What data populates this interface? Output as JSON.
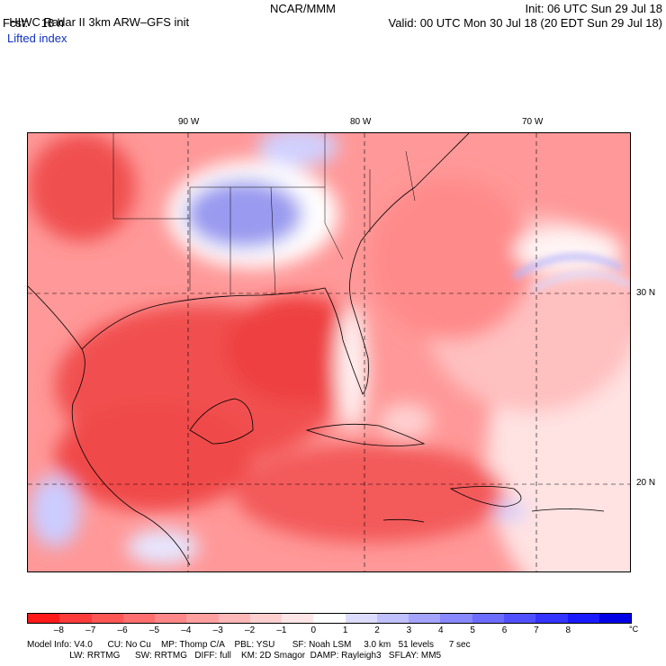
{
  "header": {
    "title": "HIWC Radar II 3km ARW–GFS init",
    "org": "NCAR/MMM",
    "init": "Init: 06 UTC Sun 29 Jul 18",
    "fcst": "Fcst:    18 h",
    "valid": "Valid: 00 UTC Mon 30 Jul 18 (20 EDT Sun 29 Jul 18)",
    "field": "Lifted index"
  },
  "map": {
    "lon_labels": [
      "90 W",
      "80 W",
      "70 W"
    ],
    "lat_labels": [
      "30 N",
      "20 N"
    ],
    "field_name": "Lifted index",
    "pattern": "Unstable (negative, red) air over the Gulf of Mexico, Caribbean, Florida and the western Atlantic; stable (positive, blue) air over the southeastern US interior and patches over Mexico and the Bahamas region"
  },
  "colorbar": {
    "colors": [
      "#ff1a1a",
      "#ff3b3b",
      "#ff5656",
      "#ff6f6f",
      "#ff8787",
      "#ff9f9f",
      "#ffb7b7",
      "#ffcfcf",
      "#ffe6e6",
      "#ffffff",
      "#dcdcff",
      "#c0c0ff",
      "#a4a4ff",
      "#8888ff",
      "#6c6cff",
      "#5050ff",
      "#3434ff",
      "#1a1aff",
      "#0000e6"
    ],
    "ticks": [
      "–8",
      "–7",
      "–6",
      "–5",
      "–4",
      "–3",
      "–2",
      "–1",
      "0",
      "1",
      "2",
      "3",
      "4",
      "5",
      "6",
      "7",
      "8"
    ],
    "unit": "°C"
  },
  "model_info": {
    "line1": "Model Info: V4.0      CU: No Cu    MP: Thomp C/A    PBL: YSU       SF: Noah LSM     3.0 km   51 levels      7 sec",
    "line2": "                 LW: RRTMG      SW: RRTMG   DIFF: full    KM: 2D Smagor  DAMP: Rayleigh3   SFLAY: MM5"
  }
}
